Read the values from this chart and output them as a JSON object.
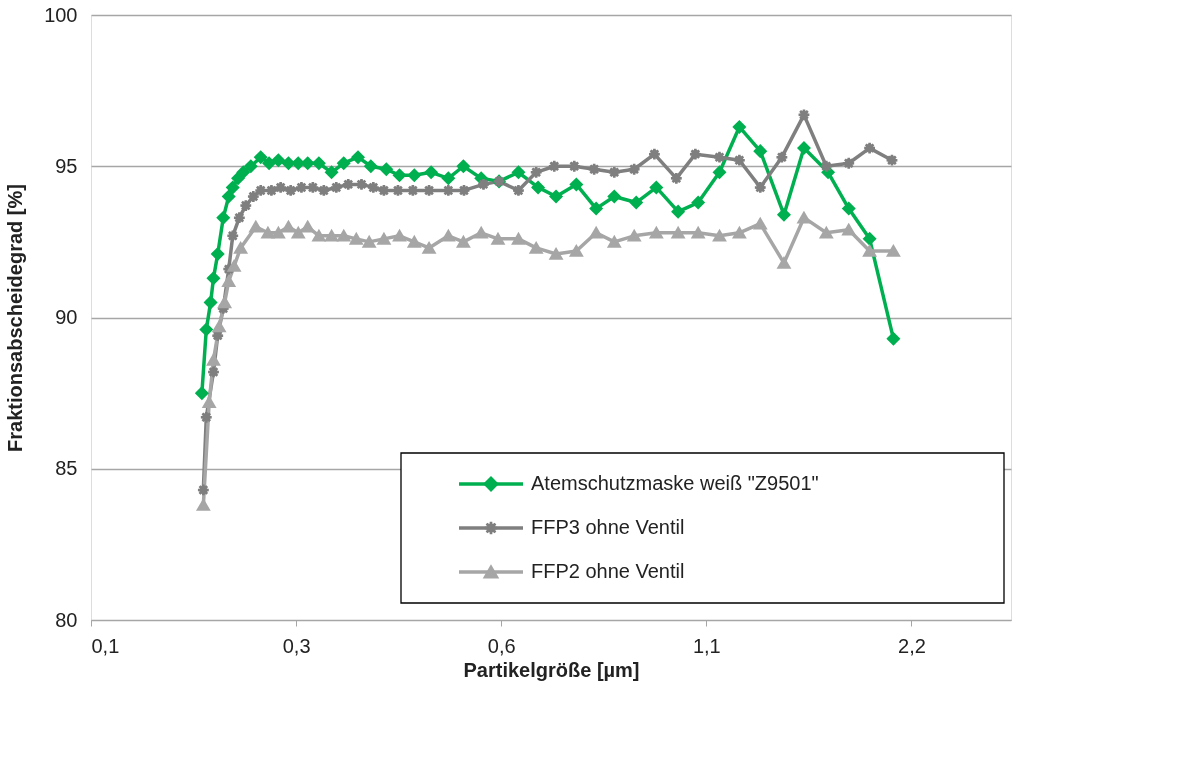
{
  "chart_data": {
    "type": "line",
    "xlabel": "Partikelgröße [µm]",
    "ylabel": "Fraktionsabscheidegrad [%]",
    "log": "x",
    "xlim": [
      0.1375,
      3.08
    ],
    "xticks": [
      {
        "value": 0.1375,
        "label": "0,1"
      },
      {
        "value": 0.275,
        "label": "0,3"
      },
      {
        "value": 0.55,
        "label": "0,6"
      },
      {
        "value": 1.1,
        "label": "1,1"
      },
      {
        "value": 2.2,
        "label": "2,2"
      }
    ],
    "ylim": [
      80,
      100
    ],
    "yticks": [
      80,
      85,
      90,
      95,
      100
    ],
    "grid": "y",
    "legend": "bottom right",
    "line_style": "solid",
    "series": [
      {
        "name": "Atemschutzmaske weiß \"Z9501\"",
        "color": "#00b050",
        "marker": "diamond",
        "x": [
          0.2,
          0.203,
          0.206,
          0.208,
          0.211,
          0.215,
          0.219,
          0.222,
          0.226,
          0.23,
          0.236,
          0.244,
          0.251,
          0.259,
          0.268,
          0.277,
          0.286,
          0.297,
          0.31,
          0.323,
          0.339,
          0.354,
          0.373,
          0.39,
          0.41,
          0.434,
          0.46,
          0.484,
          0.514,
          0.546,
          0.583,
          0.623,
          0.662,
          0.709,
          0.758,
          0.806,
          0.868,
          0.929,
          1.0,
          1.07,
          1.15,
          1.23,
          1.32,
          1.43,
          1.53,
          1.66,
          1.78,
          1.91,
          2.07
        ],
        "values": [
          87.5,
          89.6,
          90.5,
          91.3,
          92.1,
          93.3,
          94.0,
          94.3,
          94.6,
          94.8,
          95.0,
          95.3,
          95.1,
          95.2,
          95.1,
          95.1,
          95.1,
          95.1,
          94.8,
          95.1,
          95.3,
          95.0,
          94.9,
          94.7,
          94.7,
          94.8,
          94.6,
          95.0,
          94.6,
          94.5,
          94.8,
          94.3,
          94.0,
          94.4,
          93.6,
          94.0,
          93.8,
          94.3,
          93.5,
          93.8,
          94.8,
          96.3,
          95.5,
          93.4,
          95.6,
          94.8,
          93.6,
          92.6,
          89.3
        ]
      },
      {
        "name": "FFP3 ohne Ventil",
        "color": "#7f7f7f",
        "marker": "star",
        "x": [
          0.201,
          0.203,
          0.208,
          0.211,
          0.215,
          0.219,
          0.222,
          0.227,
          0.232,
          0.238,
          0.244,
          0.253,
          0.261,
          0.27,
          0.28,
          0.291,
          0.302,
          0.315,
          0.328,
          0.343,
          0.357,
          0.37,
          0.388,
          0.408,
          0.431,
          0.46,
          0.485,
          0.518,
          0.546,
          0.583,
          0.619,
          0.658,
          0.704,
          0.753,
          0.806,
          0.862,
          0.923,
          0.994,
          1.06,
          1.15,
          1.23,
          1.32,
          1.42,
          1.53,
          1.65,
          1.78,
          1.91,
          2.06
        ],
        "values": [
          84.3,
          86.7,
          88.2,
          89.4,
          90.3,
          91.6,
          92.7,
          93.3,
          93.7,
          94.0,
          94.2,
          94.2,
          94.3,
          94.2,
          94.3,
          94.3,
          94.2,
          94.3,
          94.4,
          94.4,
          94.3,
          94.2,
          94.2,
          94.2,
          94.2,
          94.2,
          94.2,
          94.4,
          94.5,
          94.2,
          94.8,
          95.0,
          95.0,
          94.9,
          94.8,
          94.9,
          95.4,
          94.6,
          95.4,
          95.3,
          95.2,
          94.3,
          95.3,
          96.7,
          95.0,
          95.1,
          95.6,
          95.2
        ]
      },
      {
        "name": "FFP2 ohne Ventil",
        "color": "#a6a6a6",
        "marker": "triangle",
        "x": [
          0.201,
          0.205,
          0.208,
          0.212,
          0.216,
          0.219,
          0.223,
          0.228,
          0.24,
          0.25,
          0.259,
          0.268,
          0.277,
          0.286,
          0.297,
          0.31,
          0.323,
          0.337,
          0.352,
          0.37,
          0.39,
          0.41,
          0.431,
          0.46,
          0.484,
          0.514,
          0.544,
          0.583,
          0.619,
          0.662,
          0.709,
          0.758,
          0.806,
          0.862,
          0.929,
          1.0,
          1.07,
          1.15,
          1.23,
          1.32,
          1.43,
          1.53,
          1.65,
          1.78,
          1.91,
          2.07
        ],
        "values": [
          83.8,
          87.2,
          88.6,
          89.7,
          90.5,
          91.2,
          91.7,
          92.3,
          93.0,
          92.8,
          92.8,
          93.0,
          92.8,
          93.0,
          92.7,
          92.7,
          92.7,
          92.6,
          92.5,
          92.6,
          92.7,
          92.5,
          92.3,
          92.7,
          92.5,
          92.8,
          92.6,
          92.6,
          92.3,
          92.1,
          92.2,
          92.8,
          92.5,
          92.7,
          92.8,
          92.8,
          92.8,
          92.7,
          92.8,
          93.1,
          91.8,
          93.3,
          92.8,
          92.9,
          92.2,
          92.2
        ]
      }
    ]
  }
}
